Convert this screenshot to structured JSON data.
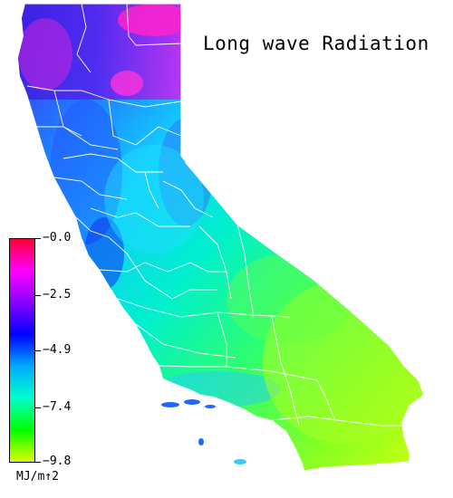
{
  "title": "Long wave Radiation",
  "legend": {
    "units": "MJ/m↑2",
    "ticks": [
      {
        "label": "−0.0",
        "value": 0.0
      },
      {
        "label": "−2.5",
        "value": -2.5
      },
      {
        "label": "−4.9",
        "value": -4.9
      },
      {
        "label": "−7.4",
        "value": -7.4
      },
      {
        "label": "−9.8",
        "value": -9.8
      }
    ],
    "range": [
      -9.8,
      0.0
    ],
    "colors": [
      "#ff0033",
      "#ff00ff",
      "#8800ff",
      "#0000ff",
      "#00aaff",
      "#00ffcc",
      "#00ff00",
      "#ddff00"
    ]
  },
  "map": {
    "region": "California counties",
    "colors": {
      "north": "#5522ee",
      "northwest": "#3355ff",
      "central_coast": "#22bbff",
      "valley": "#00ddee",
      "east": "#33ff77",
      "south": "#aaff22",
      "highlight": "#ff22cc",
      "county_lines": "#ffffff"
    }
  }
}
